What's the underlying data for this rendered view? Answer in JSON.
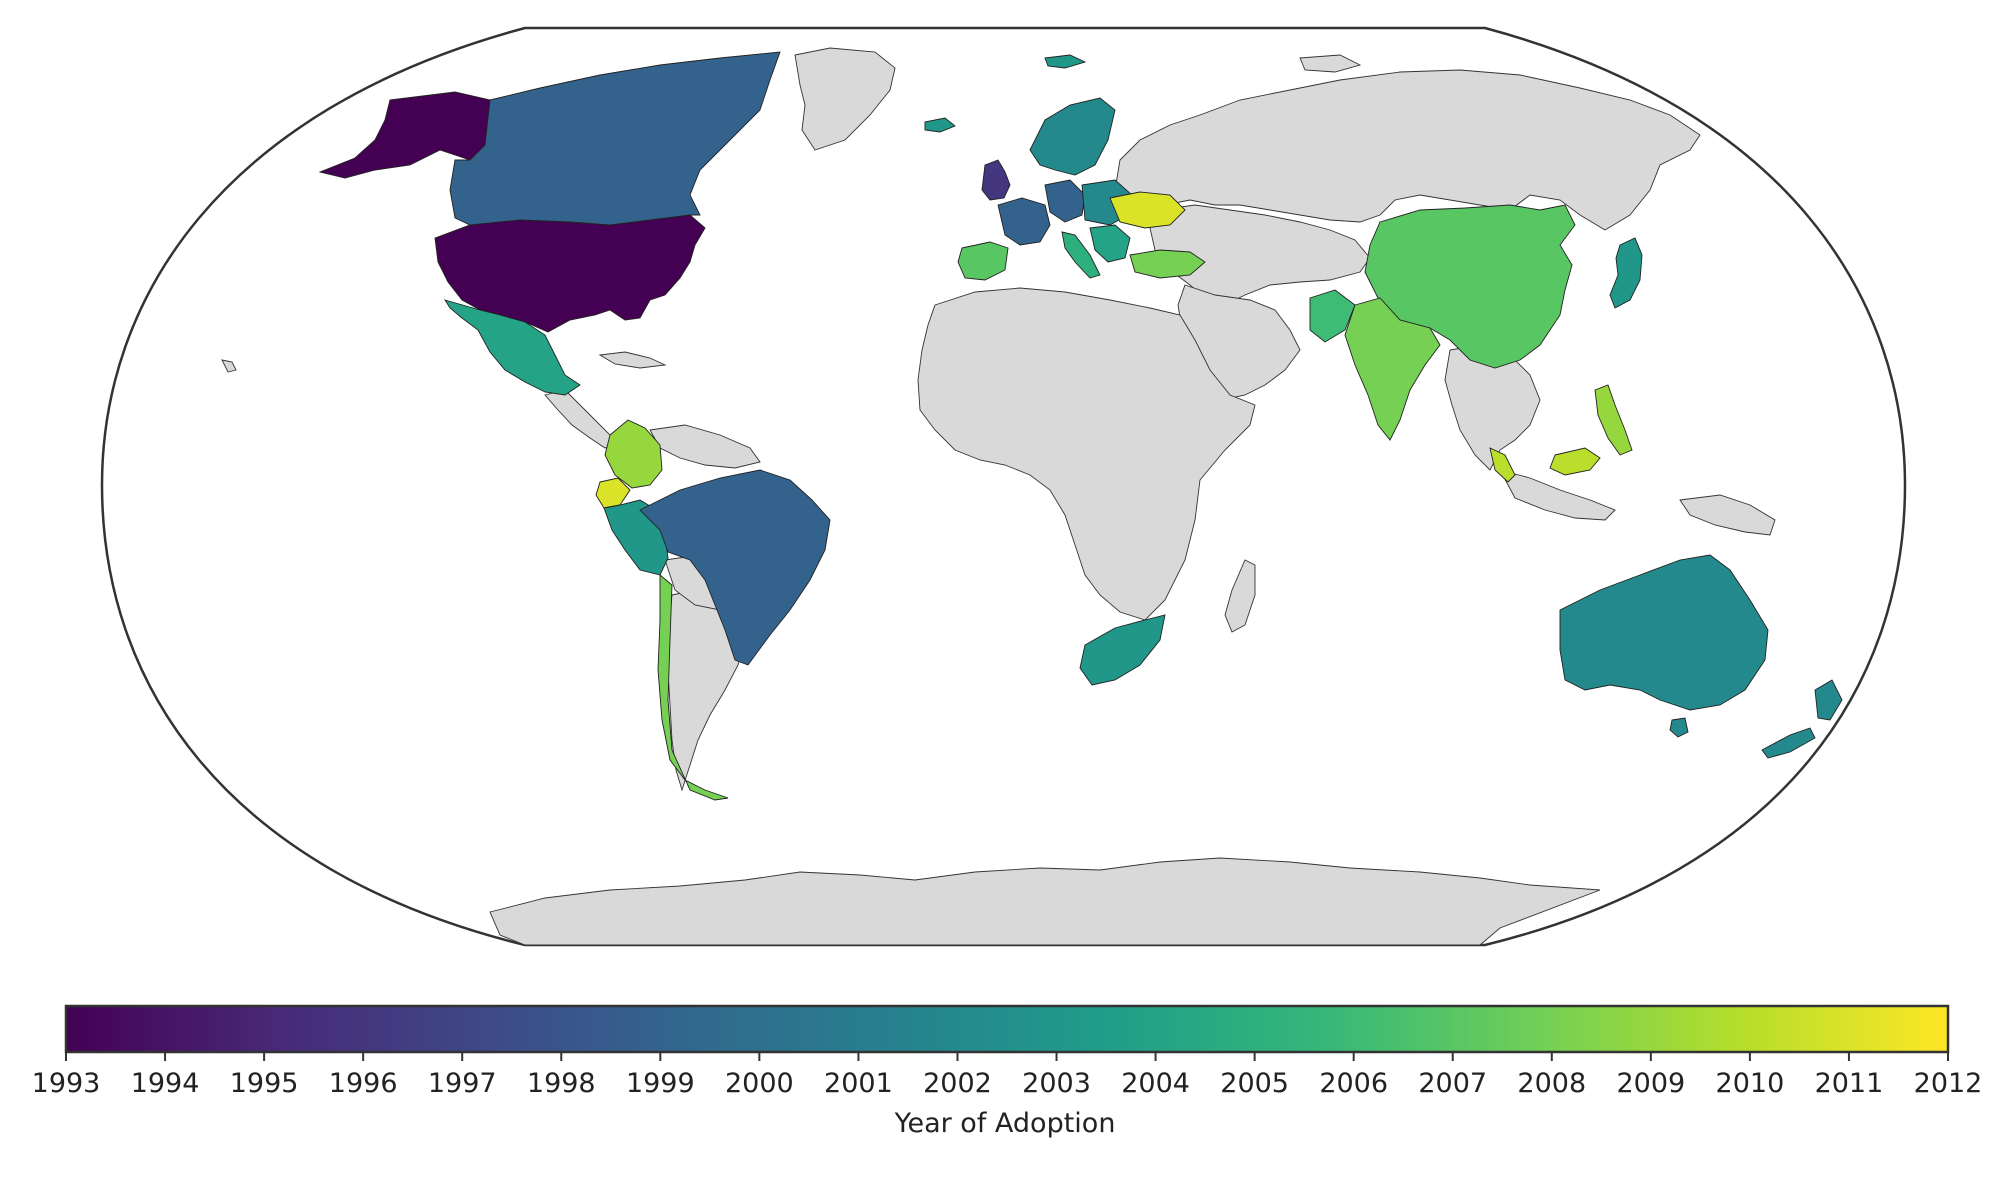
{
  "colormap": {
    "name": "viridis",
    "stops": [
      "#440154",
      "#482878",
      "#3e4989",
      "#31688e",
      "#26828e",
      "#1f9e89",
      "#35b779",
      "#6ece58",
      "#b5de2b",
      "#fde725"
    ]
  },
  "colorbar": {
    "title": "Year of Adoption",
    "min": 1993,
    "max": 2012,
    "ticks": [
      "1993",
      "1994",
      "1995",
      "1996",
      "1997",
      "1998",
      "1999",
      "2000",
      "2001",
      "2002",
      "2003",
      "2004",
      "2005",
      "2006",
      "2007",
      "2008",
      "2009",
      "2010",
      "2011",
      "2012"
    ]
  },
  "land_color": "#d9d9d9",
  "regions": [
    {
      "name": "Alaska",
      "year": 1993
    },
    {
      "name": "United States",
      "year": 1993
    },
    {
      "name": "Canada",
      "year": 1999
    },
    {
      "name": "Greenland",
      "year": null
    },
    {
      "name": "Mexico",
      "year": 2004
    },
    {
      "name": "Colombia",
      "year": 2009
    },
    {
      "name": "Ecuador",
      "year": 2011
    },
    {
      "name": "Peru",
      "year": 2003
    },
    {
      "name": "Brazil",
      "year": 1999
    },
    {
      "name": "Chile",
      "year": 2008
    },
    {
      "name": "United Kingdom",
      "year": 1996
    },
    {
      "name": "France",
      "year": 1999
    },
    {
      "name": "Germany",
      "year": 1999
    },
    {
      "name": "Spain",
      "year": 2007
    },
    {
      "name": "Italy",
      "year": 2005
    },
    {
      "name": "Scandinavia",
      "year": 2002
    },
    {
      "name": "Iceland",
      "year": 2003
    },
    {
      "name": "Svalbard",
      "year": 2003
    },
    {
      "name": "Ukraine",
      "year": 2011
    },
    {
      "name": "Turkey",
      "year": 2008
    },
    {
      "name": "China",
      "year": 2007
    },
    {
      "name": "India",
      "year": 2008
    },
    {
      "name": "Japan",
      "year": 2003
    },
    {
      "name": "Philippines",
      "year": 2009
    },
    {
      "name": "Malaysia",
      "year": 2010
    },
    {
      "name": "Australia",
      "year": 2002
    },
    {
      "name": "New Zealand",
      "year": 2002
    },
    {
      "name": "South Africa",
      "year": 2003
    }
  ]
}
